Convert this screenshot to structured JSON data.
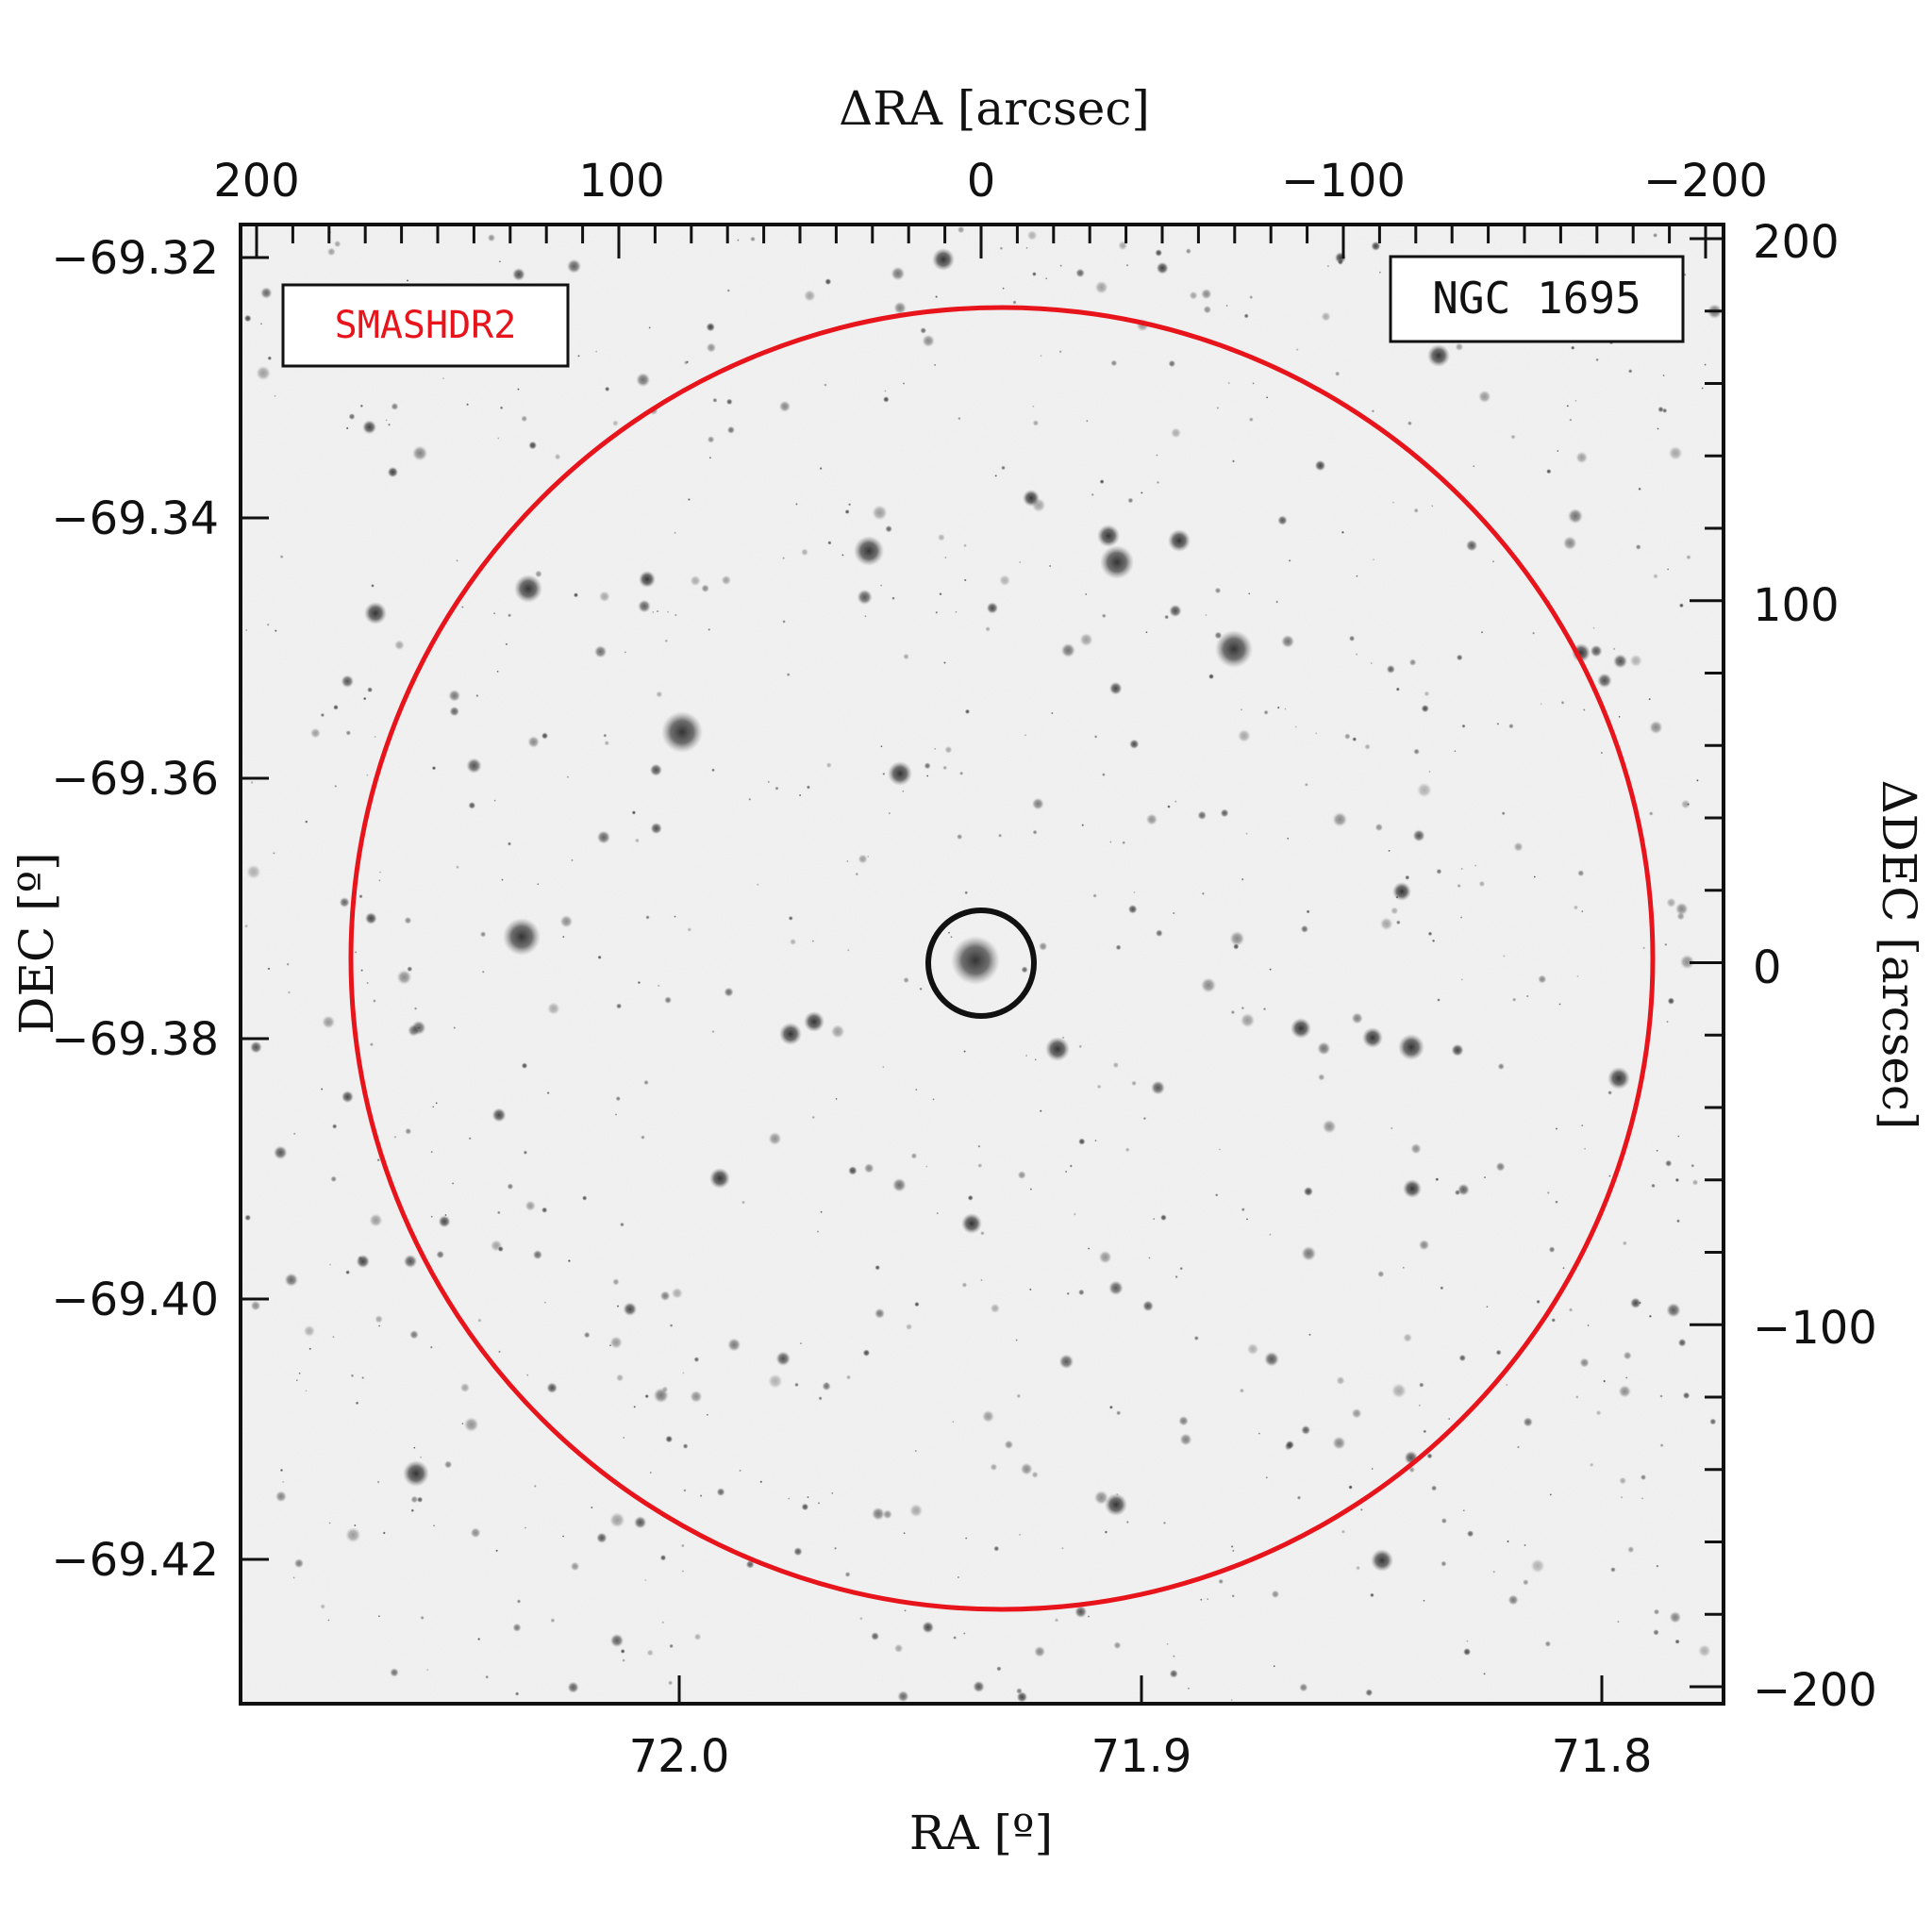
{
  "chart_data": {
    "type": "sky-image",
    "object_label": "NGC 1695",
    "survey_label": "SMASHDR2",
    "bottom_axis": {
      "label": "RA [º]",
      "ticks": [
        "72.0",
        "71.9",
        "71.8"
      ]
    },
    "left_axis": {
      "label": "DEC [º]",
      "ticks": [
        "−69.32",
        "−69.34",
        "−69.36",
        "−69.38",
        "−69.40",
        "−69.42"
      ]
    },
    "top_axis": {
      "label": "ΔRA [arcsec]",
      "ticks": [
        "200",
        "100",
        "0",
        "−100",
        "−200"
      ]
    },
    "right_axis": {
      "label": "ΔDEC [arcsec]",
      "ticks": [
        "200",
        "100",
        "0",
        "−100",
        "−200"
      ]
    },
    "colors": {
      "survey_circle": "#e8141c",
      "cluster_circle": "#111111",
      "survey_label": "#e8141c"
    }
  }
}
